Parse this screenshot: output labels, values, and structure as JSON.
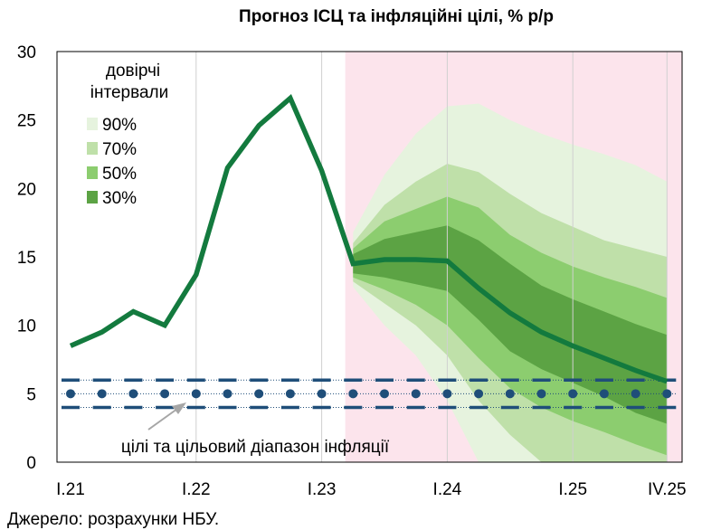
{
  "chart_data": {
    "type": "line",
    "title": "Прогноз ІСЦ та інфляційні цілі, % р/р",
    "source": "Джерело: розрахунки НБУ.",
    "ylim": [
      0,
      30
    ],
    "y_ticks": [
      "0",
      "5",
      "10",
      "15",
      "20",
      "25",
      "30"
    ],
    "x_tick_labels": [
      {
        "label": "I.21",
        "x": 0
      },
      {
        "label": "I.22",
        "x": 4
      },
      {
        "label": "I.23",
        "x": 8
      },
      {
        "label": "I.24",
        "x": 12
      },
      {
        "label": "I.25",
        "x": 16
      },
      {
        "label": "IV.25",
        "x": 19
      }
    ],
    "forecast_start_x": 8.75,
    "grid": "vertical",
    "series": [
      {
        "color": "#137a3e",
        "x": [
          0,
          1,
          2,
          3,
          4,
          5,
          6,
          7,
          8,
          9,
          10,
          11,
          12,
          13,
          14,
          15,
          16,
          17,
          18,
          19
        ],
        "values": [
          8.5,
          9.5,
          11.0,
          10.0,
          13.7,
          21.5,
          24.6,
          26.6,
          21.3,
          14.5,
          14.8,
          14.8,
          14.7,
          12.7,
          10.9,
          9.5,
          8.5,
          7.6,
          6.7,
          5.9
        ]
      }
    ],
    "fan": {
      "x": [
        9,
        10,
        11,
        12,
        13,
        14,
        15,
        16,
        17,
        18,
        19
      ],
      "bands": [
        {
          "label": "90%",
          "color": "#e6f3de",
          "upper": [
            16.8,
            21.0,
            24.0,
            26.0,
            26.2,
            25.0,
            24.0,
            23.2,
            22.5,
            21.7,
            20.5
          ],
          "lower": [
            12.8,
            10.0,
            7.8,
            4.5,
            0,
            0,
            0,
            0,
            0,
            0,
            0
          ]
        },
        {
          "label": "70%",
          "color": "#bfe0a9",
          "upper": [
            16.0,
            18.8,
            20.5,
            21.8,
            21.2,
            19.6,
            18.2,
            17.2,
            16.2,
            15.6,
            15.0
          ],
          "lower": [
            13.2,
            11.6,
            10.0,
            7.8,
            4.5,
            2.0,
            0,
            0,
            0,
            0,
            0
          ]
        },
        {
          "label": "50%",
          "color": "#8ccd6f",
          "upper": [
            15.6,
            17.6,
            18.5,
            19.4,
            18.6,
            16.6,
            15.3,
            14.3,
            13.5,
            12.8,
            12.0
          ],
          "lower": [
            13.5,
            12.6,
            11.5,
            10.0,
            7.6,
            5.4,
            4.0,
            3.0,
            2.2,
            1.3,
            0.5
          ]
        },
        {
          "label": "30%",
          "color": "#5ca344",
          "upper": [
            15.2,
            16.3,
            16.8,
            17.3,
            16.2,
            14.5,
            12.9,
            11.9,
            11.0,
            10.1,
            9.3
          ],
          "lower": [
            13.8,
            13.5,
            13.0,
            12.5,
            10.4,
            8.1,
            6.8,
            5.8,
            4.8,
            3.6,
            2.8
          ]
        }
      ]
    },
    "target": {
      "x": [
        0,
        1,
        2,
        3,
        4,
        5,
        6,
        7,
        8,
        9,
        10,
        11,
        12,
        13,
        14,
        15,
        16,
        17,
        18,
        19
      ],
      "value": 5,
      "lower": 4,
      "upper": 6,
      "color": "#1f4e79"
    },
    "legend": {
      "title_lines": [
        "довірчі",
        "інтервали"
      ],
      "position": "top-left",
      "items": [
        "90%",
        "70%",
        "50%",
        "30%"
      ]
    },
    "annotation": "цілі та цільовий діапазон інфляції"
  }
}
